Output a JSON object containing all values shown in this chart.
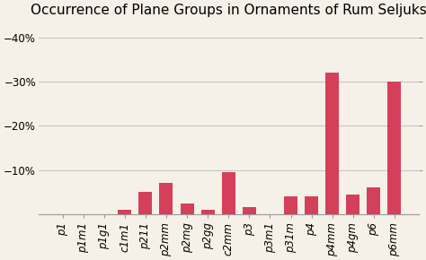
{
  "title": "Occurrence of Plane Groups in Ornaments of Rum Seljuks",
  "categories": [
    "p1",
    "p1m1",
    "p1g1",
    "c1m1",
    "p211",
    "p2mm",
    "p2mg",
    "p2gg",
    "c2mm",
    "p3",
    "p3m1",
    "p31m",
    "p4",
    "p4mm",
    "p4gm",
    "p6",
    "p6mm"
  ],
  "values": [
    0.0,
    0.0,
    0.0,
    1.0,
    5.0,
    7.0,
    2.5,
    1.0,
    9.5,
    1.5,
    0.0,
    4.0,
    4.0,
    32.0,
    4.5,
    6.0,
    30.0
  ],
  "bar_color": "#d4405a",
  "background_color": "#f5f0e8",
  "ytick_values": [
    10,
    20,
    30,
    40
  ],
  "ylim": [
    0,
    43
  ],
  "title_fontsize": 11,
  "tick_fontsize": 8.5,
  "xlabel_rotation": 90
}
